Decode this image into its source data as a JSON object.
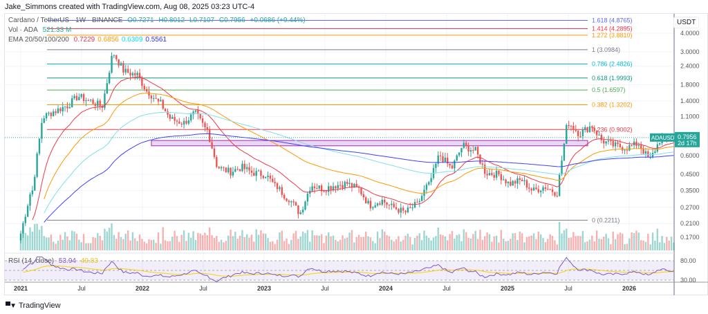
{
  "header": {
    "creator": "Jake_Simmons created with TradingView.com, Aug 08, 2025 03:23 UTC-4"
  },
  "legend": {
    "symbol": "Cardano / TetherUS · 1W · BINANCE",
    "ohlc": [
      "O0.7271",
      "H0.8012",
      "L0.7107",
      "C0.7956"
    ],
    "change": "+0.0686 (+9.44%)",
    "vol_label": "Vol · ADA",
    "vol_value": "521.33 M",
    "ema_label": "EMA 20/50/100/200",
    "ema_values": [
      {
        "v": "0.7229",
        "c": "#f23645"
      },
      {
        "v": "0.6856",
        "c": "#ff9800"
      },
      {
        "v": "0.6309",
        "c": "#00e5ff"
      },
      {
        "v": "0.5561",
        "c": "#2f2fff"
      }
    ]
  },
  "price_axis": {
    "currency": "USDT",
    "ticks": [
      4.0,
      3.0,
      2.4,
      1.8,
      1.4,
      1.1,
      0.6,
      0.45,
      0.35,
      0.27,
      0.21,
      0.17
    ],
    "tick_labels": [
      "4.0000",
      "3.0000",
      "2.4000",
      "1.8000",
      "1.4000",
      "1.1000",
      "0.6000",
      "0.4500",
      "0.3500",
      "0.2700",
      "0.2100",
      "0.1700"
    ],
    "last_price": {
      "symbol": "ADAUSDT",
      "price": "0.7956",
      "countdown": "2d 17h",
      "color": "#26a69a"
    }
  },
  "rsi": {
    "label": "RSI (14, close)",
    "values": [
      "53.94",
      "49.83"
    ],
    "ticks": [
      "80.00",
      "30.00"
    ]
  },
  "time_axis": [
    "2021",
    "Jul",
    "2022",
    "Jul",
    "2023",
    "Jul",
    "2024",
    "Jul",
    "2025",
    "Jul",
    "2026"
  ],
  "fib": [
    {
      "label": "1.618 (4.8765)",
      "price": 4.8765,
      "color": "#5b6cf5"
    },
    {
      "label": "1.414 (4.2895)",
      "price": 4.2895,
      "color": "#f23645"
    },
    {
      "label": "1.272 (3.8810)",
      "price": 3.881,
      "color": "#ff9800"
    },
    {
      "label": "1 (3.0984)",
      "price": 3.0984,
      "color": "#787b86"
    },
    {
      "label": "0.786 (2.4826)",
      "price": 2.4826,
      "color": "#00bcd4"
    },
    {
      "label": "0.618 (1.9993)",
      "price": 1.9993,
      "color": "#089981"
    },
    {
      "label": "0.5 (1.6597)",
      "price": 1.6597,
      "color": "#4caf50"
    },
    {
      "label": "0.382 (1.3202)",
      "price": 1.3202,
      "color": "#ff9800"
    },
    {
      "label": "0.236 (0.9002)",
      "price": 0.9002,
      "color": "#f23645"
    },
    {
      "label": "0 (0.2211)",
      "price": 0.2211,
      "color": "#787b86"
    }
  ],
  "chart_data": {
    "type": "candlestick",
    "interval": "1W",
    "scale": "log",
    "monthly_closes_from_2021_01": [
      0.18,
      0.35,
      1.1,
      1.2,
      1.3,
      1.5,
      1.4,
      1.3,
      2.9,
      2.2,
      2.1,
      1.6,
      1.35,
      1.05,
      1.0,
      1.15,
      0.9,
      0.5,
      0.47,
      0.5,
      0.46,
      0.45,
      0.37,
      0.31,
      0.25,
      0.38,
      0.36,
      0.38,
      0.39,
      0.36,
      0.28,
      0.3,
      0.27,
      0.25,
      0.28,
      0.38,
      0.6,
      0.5,
      0.7,
      0.65,
      0.46,
      0.45,
      0.39,
      0.41,
      0.35,
      0.37,
      0.34,
      1.0,
      0.85,
      0.95,
      0.75,
      0.7,
      0.68,
      0.72,
      0.57,
      0.78,
      0.7956
    ]
  },
  "brand": "TradingView"
}
